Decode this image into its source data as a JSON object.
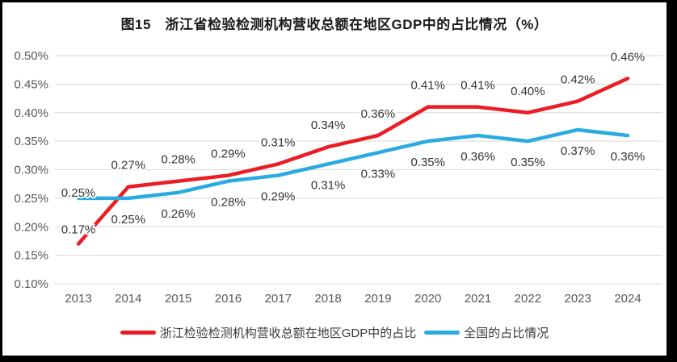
{
  "figure": {
    "frame_color": "#000000",
    "background": "#ffffff"
  },
  "chart_data": {
    "type": "line",
    "title": "图15　浙江省检验检测机构营收总额在地区GDP中的占比情况（%）",
    "x": [
      "2013",
      "2014",
      "2015",
      "2016",
      "2017",
      "2018",
      "2019",
      "2020",
      "2021",
      "2022",
      "2023",
      "2024"
    ],
    "ylim": [
      0.1,
      0.5
    ],
    "grid": true,
    "legend_position": "bottom",
    "grid_color": "#d9d9d9",
    "axis_text_color": "#595959",
    "data_label_color": "#333333",
    "yticks": [
      {
        "value": 0.1,
        "label": "0.10%"
      },
      {
        "value": 0.15,
        "label": "0.15%"
      },
      {
        "value": 0.2,
        "label": "0.20%"
      },
      {
        "value": 0.25,
        "label": "0.25%"
      },
      {
        "value": 0.3,
        "label": "0.30%"
      },
      {
        "value": 0.35,
        "label": "0.35%"
      },
      {
        "value": 0.4,
        "label": "0.40%"
      },
      {
        "value": 0.45,
        "label": "0.45%"
      },
      {
        "value": 0.5,
        "label": "0.50%"
      }
    ],
    "series": [
      {
        "name": "浙江检验检测机构营收总额在地区GDP中的占比",
        "color": "#ec1c24",
        "label_position": "above",
        "values": [
          0.17,
          0.27,
          0.28,
          0.29,
          0.31,
          0.34,
          0.36,
          0.41,
          0.41,
          0.4,
          0.42,
          0.46
        ],
        "labels": [
          "0.17%",
          "0.27%",
          "0.28%",
          "0.29%",
          "0.31%",
          "0.34%",
          "0.36%",
          "0.41%",
          "0.41%",
          "0.40%",
          "0.42%",
          "0.46%"
        ]
      },
      {
        "name": "全国的占比情况",
        "color": "#29abe2",
        "label_position": "below",
        "values": [
          0.25,
          0.25,
          0.26,
          0.28,
          0.29,
          0.31,
          0.33,
          0.35,
          0.36,
          0.35,
          0.37,
          0.36
        ],
        "labels": [
          "0.25%",
          "0.25%",
          "0.26%",
          "0.28%",
          "0.29%",
          "0.31%",
          "0.33%",
          "0.35%",
          "0.36%",
          "0.35%",
          "0.37%",
          "0.36%"
        ]
      }
    ]
  }
}
